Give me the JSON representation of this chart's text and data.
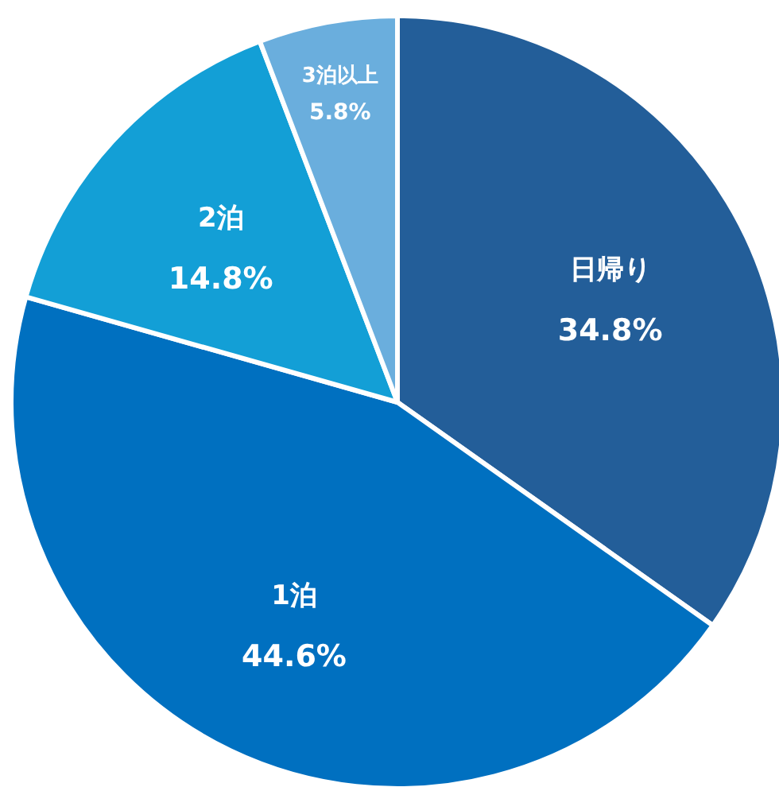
{
  "chart_data": {
    "type": "pie",
    "categories": [
      "日帰り",
      "1泊",
      "2泊",
      "3泊以上"
    ],
    "values": [
      34.8,
      44.6,
      14.8,
      5.8
    ],
    "colors": [
      "#235e99",
      "#0070c0",
      "#139fd6",
      "#6aaedd"
    ],
    "value_labels": [
      "34.8%",
      "44.6%",
      "14.8%",
      "5.8%"
    ]
  }
}
